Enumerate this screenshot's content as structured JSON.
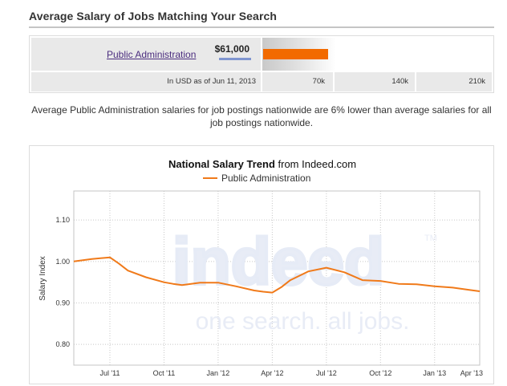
{
  "header": {
    "title": "Average Salary of Jobs Matching Your Search"
  },
  "salary_table": {
    "job_title": "Public Administration",
    "salary": "$61,000",
    "salary_value": 61000,
    "scale_max": 210000,
    "bar_start": 0,
    "note": "In USD as of Jun 11, 2013",
    "scale_labels": [
      "70k",
      "140k",
      "210k"
    ],
    "bar_color": "#f26a00"
  },
  "comparison_text": "Average Public Administration salaries for job postings nationwide are 6% lower than average salaries for all job postings nationwide.",
  "watermark": {
    "brand": "indeed",
    "tm": "TM",
    "tagline": "one search. all jobs."
  },
  "chart_data": {
    "type": "line",
    "title_bold": "National Salary Trend",
    "title_rest": " from Indeed.com",
    "ylabel": "Salary Index",
    "ylim": [
      0.75,
      1.17
    ],
    "yticks": [
      0.8,
      0.9,
      1.0,
      1.1
    ],
    "ytick_labels": [
      "0.80",
      "0.90",
      "1.00",
      "1.10"
    ],
    "xlim": [
      0,
      22.5
    ],
    "xticks": [
      2,
      5,
      8,
      11,
      14,
      17,
      20,
      22.5
    ],
    "xtick_labels": [
      "Jul '11",
      "Oct '11",
      "Jan '12",
      "Apr '12",
      "Jul '12",
      "Oct '12",
      "Jan '13",
      "Apr '13"
    ],
    "grid": true,
    "legend_position": "top-center",
    "series": [
      {
        "name": "Public Administration",
        "color": "#f07a1a",
        "x": [
          0,
          1,
          2,
          2.5,
          3,
          4,
          5,
          5.5,
          6,
          7,
          8,
          9,
          10,
          10.5,
          11,
          11.5,
          12,
          13,
          14,
          15,
          16,
          17,
          18,
          19,
          20,
          21,
          22,
          22.5
        ],
        "values": [
          1.0,
          1.006,
          1.01,
          0.995,
          0.978,
          0.962,
          0.95,
          0.946,
          0.943,
          0.949,
          0.949,
          0.94,
          0.93,
          0.927,
          0.925,
          0.938,
          0.955,
          0.976,
          0.985,
          0.974,
          0.955,
          0.953,
          0.946,
          0.945,
          0.94,
          0.937,
          0.931,
          0.928
        ]
      }
    ]
  }
}
